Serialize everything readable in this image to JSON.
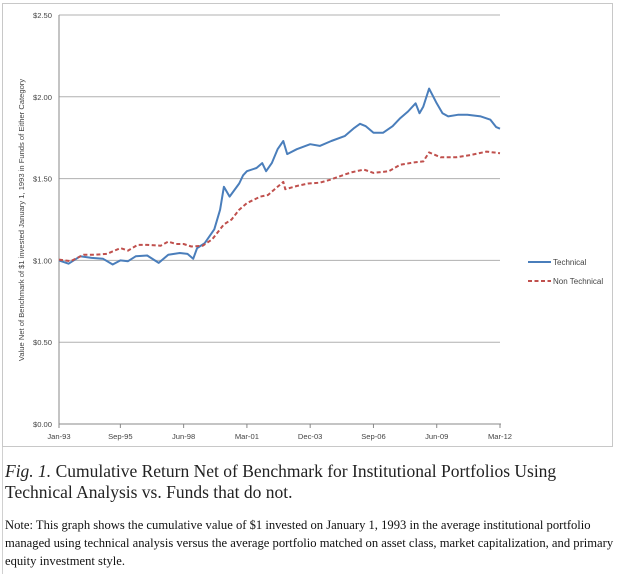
{
  "chart_data": {
    "type": "line",
    "title": "",
    "xlabel": "",
    "ylabel": "Value Net of Benchmark of $1 invested January 1, 1993 in Funds of Either Category",
    "x_unit": "months since Jan-93",
    "xlim": [
      0,
      230
    ],
    "ylim": [
      0,
      2.5
    ],
    "grid": true,
    "legend_position": "right",
    "x_tick_values": [
      0,
      32,
      65,
      98,
      131,
      164,
      197,
      230
    ],
    "x_tick_labels": [
      "Jan-93",
      "Sep-95",
      "Jun-98",
      "Mar-01",
      "Dec-03",
      "Sep-06",
      "Jun-09",
      "Mar-12"
    ],
    "y_tick_values": [
      0,
      0.5,
      1.0,
      1.5,
      2.0,
      2.5
    ],
    "y_tick_labels": [
      "$0.00",
      "$0.50",
      "$1.00",
      "$1.50",
      "$2.00",
      "$2.50"
    ],
    "series": [
      {
        "name": "Technical",
        "color": "#4a7ebb",
        "dash": "solid",
        "x": [
          0,
          5,
          11,
          17,
          23,
          28,
          32,
          36,
          40,
          46,
          52,
          57,
          63,
          67,
          70,
          72,
          76,
          81,
          84,
          86,
          89,
          94,
          96,
          98,
          103,
          106,
          108,
          111,
          114,
          117,
          119,
          124,
          131,
          136,
          142,
          149,
          154,
          157,
          160,
          164,
          169,
          174,
          178,
          182,
          186,
          188,
          190,
          193,
          197,
          200,
          203,
          208,
          213,
          220,
          225,
          228,
          230
        ],
        "values": [
          1.0,
          0.98,
          1.025,
          1.015,
          1.01,
          0.975,
          1.0,
          0.995,
          1.025,
          1.03,
          0.985,
          1.035,
          1.045,
          1.04,
          1.01,
          1.075,
          1.105,
          1.19,
          1.31,
          1.45,
          1.39,
          1.47,
          1.52,
          1.545,
          1.565,
          1.595,
          1.545,
          1.595,
          1.68,
          1.73,
          1.65,
          1.68,
          1.71,
          1.7,
          1.73,
          1.76,
          1.81,
          1.835,
          1.82,
          1.78,
          1.78,
          1.82,
          1.87,
          1.91,
          1.96,
          1.9,
          1.94,
          2.05,
          1.96,
          1.9,
          1.88,
          1.89,
          1.89,
          1.88,
          1.86,
          1.815,
          1.805
        ]
      },
      {
        "name": "Non Technical",
        "color": "#c0504d",
        "dash": "dashed",
        "x": [
          0,
          6,
          13,
          19,
          25,
          32,
          36,
          41,
          46,
          53,
          57,
          61,
          65,
          69,
          75,
          80,
          86,
          90,
          94,
          98,
          105,
          109,
          113,
          117,
          118,
          124,
          130,
          136,
          142,
          149,
          153,
          159,
          164,
          172,
          178,
          186,
          190,
          193,
          199,
          207,
          215,
          223,
          230
        ],
        "values": [
          1.005,
          0.995,
          1.035,
          1.035,
          1.04,
          1.075,
          1.06,
          1.095,
          1.095,
          1.09,
          1.115,
          1.1,
          1.1,
          1.085,
          1.09,
          1.13,
          1.22,
          1.25,
          1.31,
          1.35,
          1.39,
          1.4,
          1.44,
          1.48,
          1.435,
          1.455,
          1.47,
          1.475,
          1.495,
          1.525,
          1.54,
          1.555,
          1.535,
          1.545,
          1.585,
          1.6,
          1.605,
          1.66,
          1.63,
          1.63,
          1.645,
          1.665,
          1.655
        ]
      }
    ]
  },
  "caption": {
    "fig_label": "Fig. 1.",
    "text": " Cumulative Return Net of Benchmark for Institutional Portfolios Using Technical Analysis vs. Funds that do not."
  },
  "note": "Note: This graph shows the cumulative value of $1 invested on January 1, 1993 in the average institutional portfolio managed using technical analysis versus the average portfolio matched on asset class, market capitalization, and primary equity investment style."
}
